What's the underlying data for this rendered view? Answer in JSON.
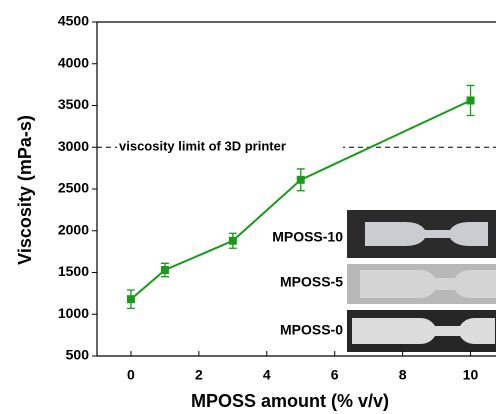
{
  "chart_data": {
    "type": "line",
    "x_label": "MPOSS amount (% v/v)",
    "y_label": "Viscosity (mPa-s)",
    "x": [
      0,
      1,
      3,
      5,
      10
    ],
    "series": [
      {
        "color": "#1a9a1a",
        "values": [
          1180,
          1530,
          1880,
          2610,
          3560
        ],
        "errors": [
          110,
          80,
          90,
          130,
          180
        ]
      }
    ],
    "xlim": [
      -1,
      10.75
    ],
    "ylim": [
      500,
      4500
    ],
    "xticks": [
      0,
      2,
      4,
      6,
      8,
      10
    ],
    "yticks": [
      500,
      1000,
      1500,
      2000,
      2500,
      3000,
      3500,
      4000,
      4500
    ],
    "reference_line": {
      "value": 3000,
      "label": "viscosity limit of 3D printer"
    },
    "inset_labels": [
      "MPOSS-10",
      "MPOSS-5",
      "MPOSS-0"
    ]
  }
}
